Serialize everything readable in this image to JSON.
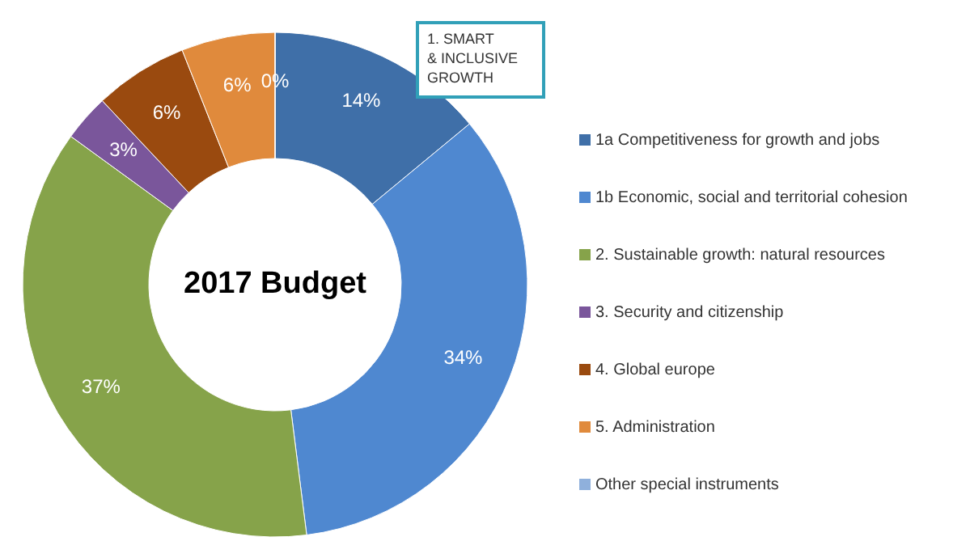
{
  "chart_data": {
    "type": "donut",
    "title": "2017 Budget",
    "categories": [
      "1a Competitiveness for growth and jobs",
      "1b Economic, social and territorial cohesion",
      "2. Sustainable growth: natural resources",
      "3. Security and citizenship",
      "4. Global europe",
      "5. Administration",
      "Other special instruments"
    ],
    "values": [
      14,
      34,
      37,
      3,
      6,
      6,
      0
    ],
    "colors": [
      "#3f6fa8",
      "#4f88d0",
      "#86a34a",
      "#7a569b",
      "#9a4a0f",
      "#e08a3c",
      "#8fb0dc"
    ],
    "value_labels": [
      "14%",
      "34%",
      "37%",
      "3%",
      "6%",
      "6%",
      "0%"
    ],
    "legend": "right",
    "annotations": [
      "1. SMART\n& INCLUSIVE\nGROWTH"
    ]
  }
}
